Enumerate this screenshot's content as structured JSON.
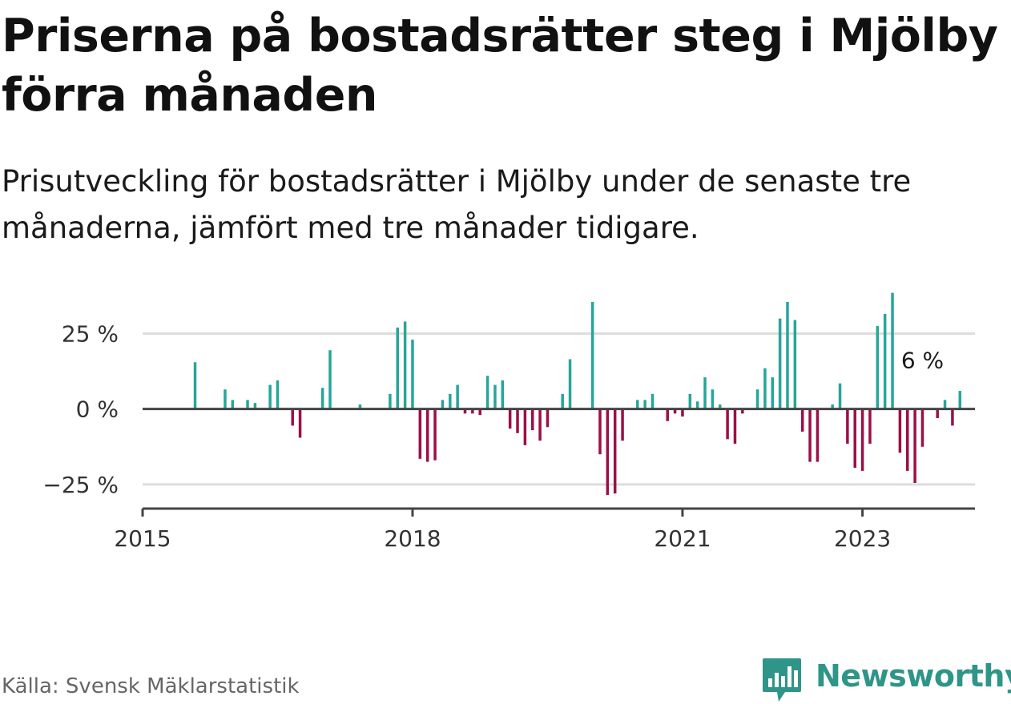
{
  "title": "Priserna på bostadsrätter steg i Mjölby förra månaden",
  "subtitle": "Prisutveckling för bostadsrätter i Mjölby under de senaste tre månaderna, jämfört med tre månader tidigare.",
  "source": "Källa: Svensk Mäklarstatistik",
  "brand": "Newsworthy",
  "colors": {
    "positive": "#26a69a",
    "negative": "#9c0f48",
    "grid": "#dddddd",
    "axis": "#444444",
    "brand": "#2e9588"
  },
  "chart_data": {
    "type": "bar",
    "x_unit": "month",
    "xlim": [
      "2015-01",
      "2024-04"
    ],
    "ylim": [
      -33,
      40
    ],
    "y_ticks": [
      25,
      0,
      -25
    ],
    "y_tick_labels": [
      "25 %",
      "0 %",
      "−25 %"
    ],
    "x_ticks": [
      "2015-01",
      "2018-01",
      "2021-01",
      "2023-01"
    ],
    "x_tick_labels": [
      "2015",
      "2018",
      "2021",
      "2023"
    ],
    "grid": true,
    "annotation": {
      "x": "2023-09",
      "y": 6,
      "text": "6 %"
    },
    "points": [
      {
        "x": "2015-08",
        "y": 15.5
      },
      {
        "x": "2015-12",
        "y": 6.5
      },
      {
        "x": "2016-01",
        "y": 3
      },
      {
        "x": "2016-03",
        "y": 3
      },
      {
        "x": "2016-04",
        "y": 2
      },
      {
        "x": "2016-06",
        "y": 8
      },
      {
        "x": "2016-07",
        "y": 9.5
      },
      {
        "x": "2016-09",
        "y": -5.5
      },
      {
        "x": "2016-10",
        "y": -9.5
      },
      {
        "x": "2017-01",
        "y": 7
      },
      {
        "x": "2017-02",
        "y": 19.5
      },
      {
        "x": "2017-06",
        "y": 1.5
      },
      {
        "x": "2017-10",
        "y": 5
      },
      {
        "x": "2017-11",
        "y": 27
      },
      {
        "x": "2017-12",
        "y": 29
      },
      {
        "x": "2018-01",
        "y": 23
      },
      {
        "x": "2018-02",
        "y": -16.5
      },
      {
        "x": "2018-03",
        "y": -17.5
      },
      {
        "x": "2018-04",
        "y": -17
      },
      {
        "x": "2018-05",
        "y": 3
      },
      {
        "x": "2018-06",
        "y": 5
      },
      {
        "x": "2018-07",
        "y": 8
      },
      {
        "x": "2018-08",
        "y": -1.5
      },
      {
        "x": "2018-09",
        "y": -1.5
      },
      {
        "x": "2018-10",
        "y": -2
      },
      {
        "x": "2018-11",
        "y": 11
      },
      {
        "x": "2018-12",
        "y": 8
      },
      {
        "x": "2019-01",
        "y": 9.5
      },
      {
        "x": "2019-02",
        "y": -6.5
      },
      {
        "x": "2019-03",
        "y": -8
      },
      {
        "x": "2019-04",
        "y": -12
      },
      {
        "x": "2019-05",
        "y": -7
      },
      {
        "x": "2019-06",
        "y": -10.5
      },
      {
        "x": "2019-07",
        "y": -6
      },
      {
        "x": "2019-09",
        "y": 5
      },
      {
        "x": "2019-10",
        "y": 16.5
      },
      {
        "x": "2020-01",
        "y": 35.5
      },
      {
        "x": "2020-02",
        "y": -15
      },
      {
        "x": "2020-03",
        "y": -28.5
      },
      {
        "x": "2020-04",
        "y": -28
      },
      {
        "x": "2020-05",
        "y": -10.5
      },
      {
        "x": "2020-07",
        "y": 3
      },
      {
        "x": "2020-08",
        "y": 3
      },
      {
        "x": "2020-09",
        "y": 5
      },
      {
        "x": "2020-11",
        "y": -4
      },
      {
        "x": "2020-12",
        "y": -1.5
      },
      {
        "x": "2021-01",
        "y": -2.5
      },
      {
        "x": "2021-02",
        "y": 5
      },
      {
        "x": "2021-03",
        "y": 2.5
      },
      {
        "x": "2021-04",
        "y": 10.5
      },
      {
        "x": "2021-05",
        "y": 6.5
      },
      {
        "x": "2021-06",
        "y": 1.5
      },
      {
        "x": "2021-07",
        "y": -10
      },
      {
        "x": "2021-08",
        "y": -11.5
      },
      {
        "x": "2021-09",
        "y": -1.5
      },
      {
        "x": "2021-11",
        "y": 6.5
      },
      {
        "x": "2021-12",
        "y": 13.5
      },
      {
        "x": "2022-01",
        "y": 10.5
      },
      {
        "x": "2022-02",
        "y": 30
      },
      {
        "x": "2022-03",
        "y": 35.5
      },
      {
        "x": "2022-04",
        "y": 29.5
      },
      {
        "x": "2022-05",
        "y": -7.5
      },
      {
        "x": "2022-06",
        "y": -17.5
      },
      {
        "x": "2022-07",
        "y": -17.5
      },
      {
        "x": "2022-09",
        "y": 1.5
      },
      {
        "x": "2022-10",
        "y": 8.5
      },
      {
        "x": "2022-11",
        "y": -11.5
      },
      {
        "x": "2022-12",
        "y": -19.5
      },
      {
        "x": "2023-01",
        "y": -20.5
      },
      {
        "x": "2023-02",
        "y": -11.5
      },
      {
        "x": "2023-03",
        "y": 27.5
      },
      {
        "x": "2023-04",
        "y": 31.5
      },
      {
        "x": "2023-05",
        "y": 38.5
      },
      {
        "x": "2023-06",
        "y": -14.5
      },
      {
        "x": "2023-07",
        "y": -20.5
      },
      {
        "x": "2023-08",
        "y": -24.5
      },
      {
        "x": "2023-09",
        "y": -12.5
      },
      {
        "x": "2023-11",
        "y": -3
      },
      {
        "x": "2023-12",
        "y": 3
      },
      {
        "x": "2024-01",
        "y": -5.5
      },
      {
        "x": "2024-02",
        "y": 6
      }
    ]
  }
}
